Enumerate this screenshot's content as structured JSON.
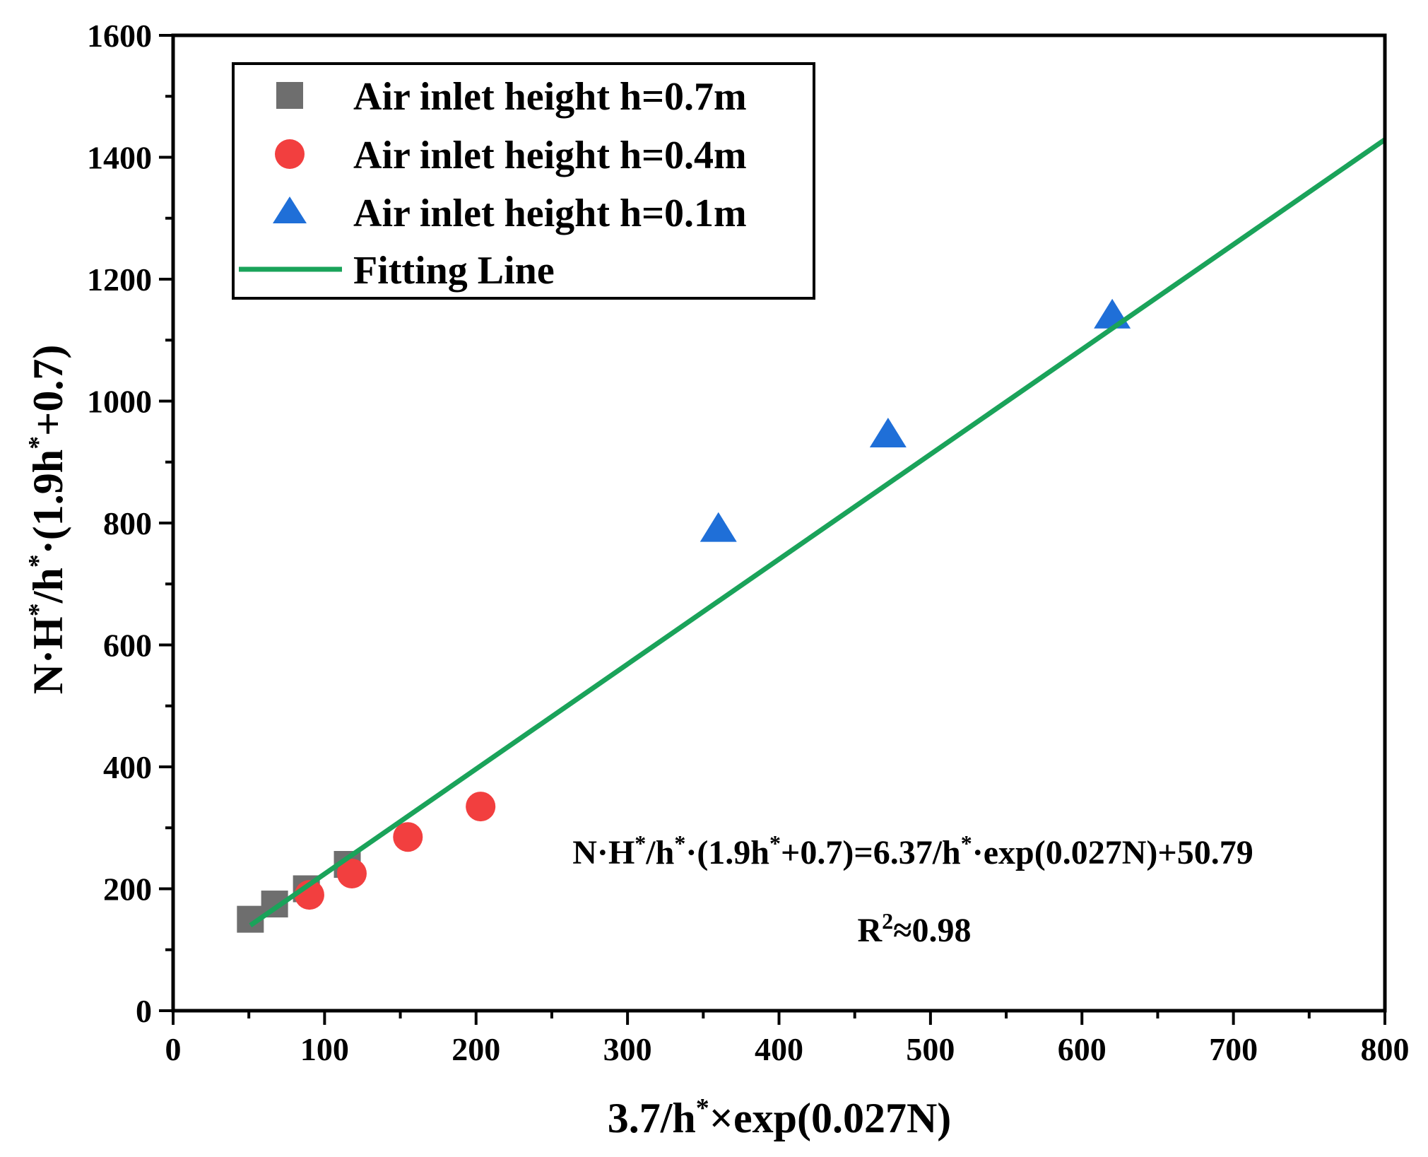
{
  "chart_data": {
    "type": "scatter",
    "title": "",
    "xlabel": "3.7/h*×exp(0.027N)",
    "ylabel": "N·H*/h*·(1.9h*+0.7)",
    "xlim": [
      0,
      800
    ],
    "ylim": [
      0,
      1600
    ],
    "x_ticks": [
      0,
      100,
      200,
      300,
      400,
      500,
      600,
      700,
      800
    ],
    "y_ticks": [
      0,
      200,
      400,
      600,
      800,
      1000,
      1200,
      1400,
      1600
    ],
    "x_tick_labels": [
      "0",
      "100",
      "200",
      "300",
      "400",
      "500",
      "600",
      "700",
      "800"
    ],
    "y_tick_labels": [
      "0",
      "200",
      "400",
      "600",
      "800",
      "1000",
      "1200",
      "1400",
      "1600"
    ],
    "grid": false,
    "legend_position": "top-left",
    "series": [
      {
        "name": "Air inlet height h=0.7m",
        "marker": "square",
        "color": "#6e6e6e",
        "x": [
          51,
          67,
          88,
          115
        ],
        "y": [
          150,
          175,
          200,
          240
        ]
      },
      {
        "name": "Air inlet height h=0.4m",
        "marker": "circle",
        "color": "#f23f3f",
        "x": [
          90,
          118,
          155,
          203
        ],
        "y": [
          190,
          225,
          285,
          335
        ]
      },
      {
        "name": "Air inlet height h=0.1m",
        "marker": "triangle",
        "color": "#1f6fd8",
        "x": [
          360,
          472,
          620
        ],
        "y": [
          790,
          945,
          1140
        ]
      },
      {
        "name": "Fitting Line",
        "marker": "line",
        "color": "#1aa35a",
        "x": [
          51,
          800
        ],
        "y": [
          140,
          1429
        ]
      }
    ],
    "annotations": {
      "equation_parts": [
        "N·H",
        "*",
        "/h",
        "*",
        "·(1.9h",
        "*",
        "+0.7)=6.37/h",
        "*",
        "·exp(0.027N)+50.79"
      ],
      "r2_parts": [
        "R",
        "2",
        "≈0.98"
      ]
    },
    "xlabel_parts": [
      "3.7/h",
      "*",
      "×exp(0.027N)"
    ],
    "ylabel_parts": [
      "N·H",
      "*",
      "/h",
      "*",
      "·(1.9h",
      "*",
      "+0.7)"
    ]
  }
}
